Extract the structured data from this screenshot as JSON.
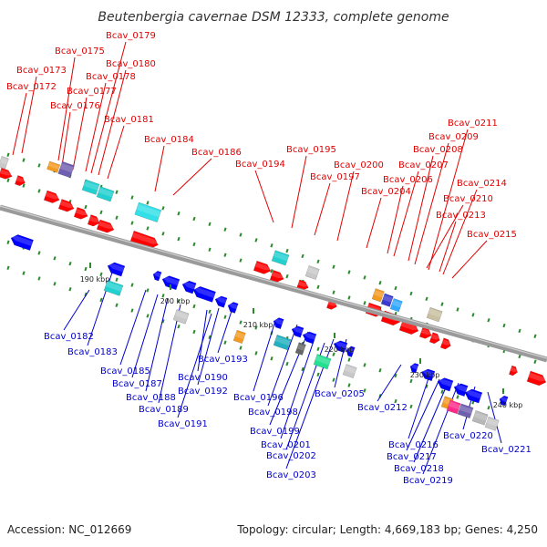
{
  "title": "Beutenbergia cavernae DSM 12333, complete genome",
  "footer": {
    "accession": "Accession: NC_012669",
    "info": "Topology: circular; Length: 4,669,183 bp; Genes: 4,250"
  },
  "colors": {
    "backbone": "#8a8a8a",
    "forward_label": "#e00000",
    "reverse_label": "#0000cc",
    "forward_gene": "#ff0000",
    "reverse_gene": "#0000ff",
    "tick": "#2a8a2a"
  },
  "scale_ticks": [
    "190 kbp",
    "200 kbp",
    "210 kbp",
    "220 kbp",
    "230 kbp",
    "240 kbp"
  ],
  "forward_labels": [
    "Bcav_0172",
    "Bcav_0173",
    "Bcav_0175",
    "Bcav_0176",
    "Bcav_0177",
    "Bcav_0178",
    "Bcav_0179",
    "Bcav_0180",
    "Bcav_0181",
    "Bcav_0184",
    "Bcav_0186",
    "Bcav_0194",
    "Bcav_0195",
    "Bcav_0197",
    "Bcav_0200",
    "Bcav_0204",
    "Bcav_0206",
    "Bcav_0207",
    "Bcav_0208",
    "Bcav_0209",
    "Bcav_0210",
    "Bcav_0211",
    "Bcav_0213",
    "Bcav_0214",
    "Bcav_0215"
  ],
  "reverse_labels": [
    "Bcav_0182",
    "Bcav_0183",
    "Bcav_0185",
    "Bcav_0187",
    "Bcav_0188",
    "Bcav_0189",
    "Bcav_0190",
    "Bcav_0191",
    "Bcav_0192",
    "Bcav_0193",
    "Bcav_0196",
    "Bcav_0198",
    "Bcav_0199",
    "Bcav_0201",
    "Bcav_0202",
    "Bcav_0203",
    "Bcav_0205",
    "Bcav_0212",
    "Bcav_0216",
    "Bcav_0217",
    "Bcav_0218",
    "Bcav_0219",
    "Bcav_0220",
    "Bcav_0221"
  ]
}
